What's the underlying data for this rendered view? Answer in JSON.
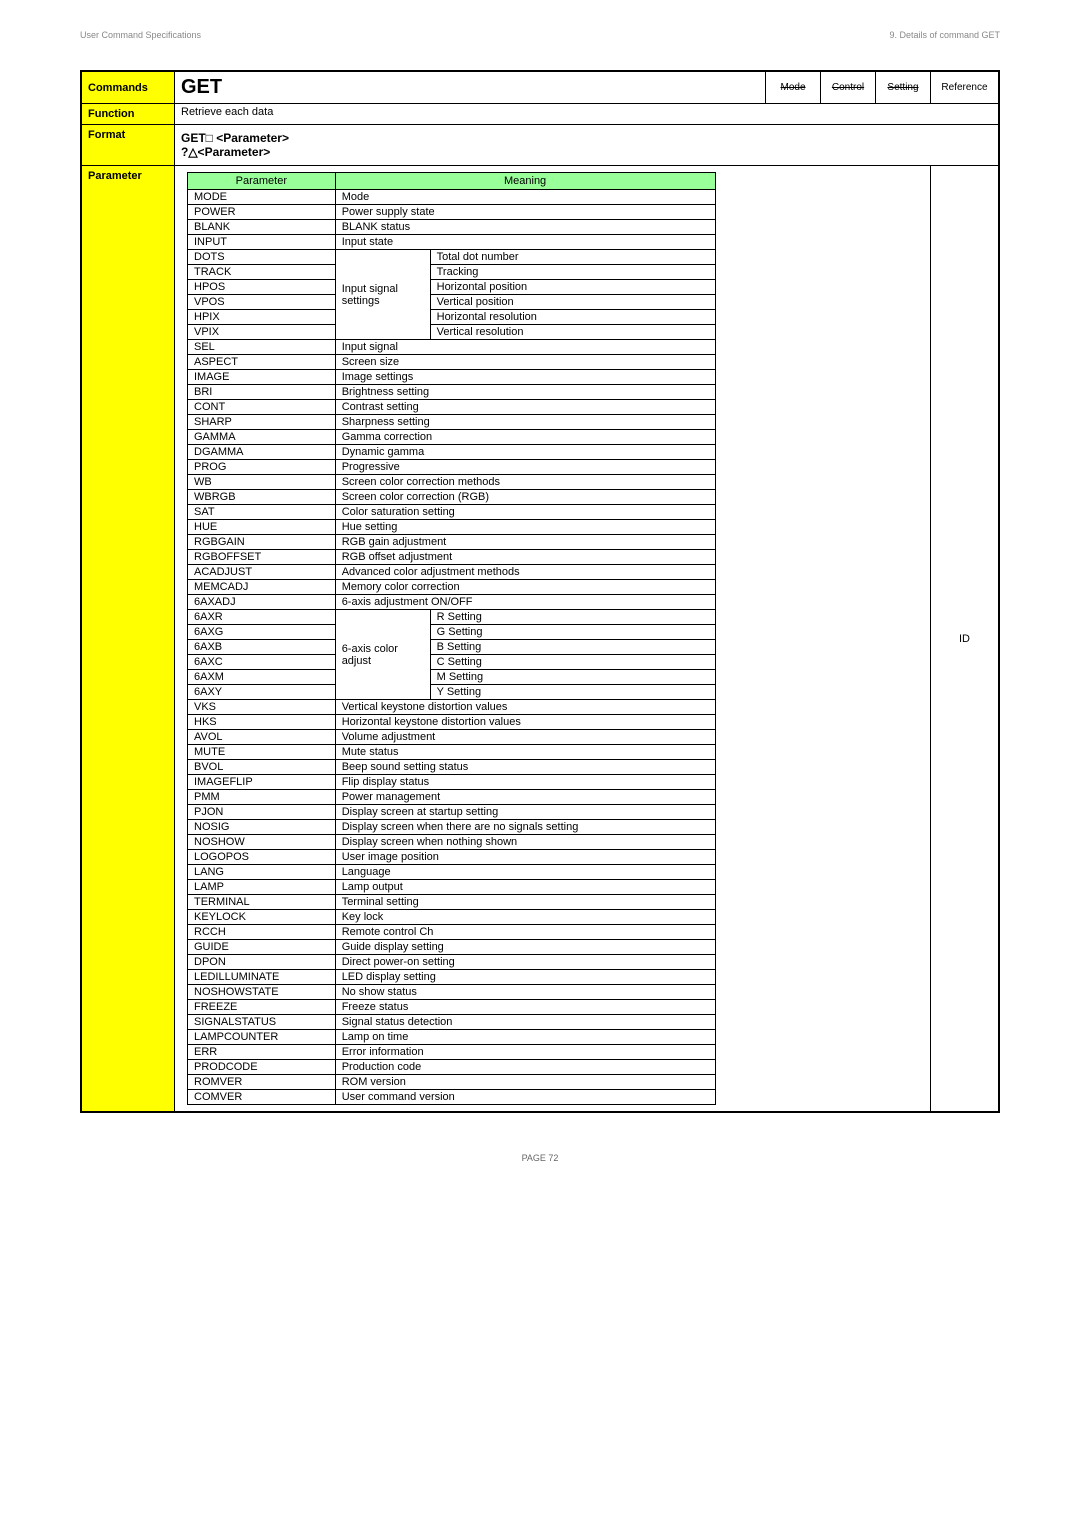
{
  "header": {
    "left": "User Command Specifications",
    "right": "9. Details of command GET"
  },
  "top": {
    "commands": "Commands",
    "get": "GET",
    "mode": "Mode",
    "control": "Control",
    "setting": "Setting",
    "reference": "Reference"
  },
  "function": {
    "label": "Function",
    "text": "Retrieve each data"
  },
  "format": {
    "label": "Format",
    "line1": "GET□ <Parameter>",
    "line2": "?△<Parameter>"
  },
  "parameter": {
    "label": "Parameter",
    "col1": "Parameter",
    "col2": "Meaning",
    "id": "ID"
  },
  "inputSignal": "Input signal settings",
  "sixAxis": "6-axis color adjust",
  "rows": [
    {
      "p": "MODE",
      "m": "Mode"
    },
    {
      "p": "POWER",
      "m": "Power supply state"
    },
    {
      "p": "BLANK",
      "m": "BLANK status"
    },
    {
      "p": "INPUT",
      "m": "Input state"
    },
    {
      "p": "DOTS",
      "m": "Total dot number",
      "g": "input"
    },
    {
      "p": "TRACK",
      "m": "Tracking",
      "g": "input"
    },
    {
      "p": "HPOS",
      "m": "Horizontal position",
      "g": "input"
    },
    {
      "p": "VPOS",
      "m": "Vertical position",
      "g": "input"
    },
    {
      "p": "HPIX",
      "m": "Horizontal resolution",
      "g": "input"
    },
    {
      "p": "VPIX",
      "m": "Vertical resolution",
      "g": "input"
    },
    {
      "p": "SEL",
      "m": "Input signal"
    },
    {
      "p": "ASPECT",
      "m": "Screen size"
    },
    {
      "p": "IMAGE",
      "m": "Image settings"
    },
    {
      "p": "BRI",
      "m": "Brightness setting"
    },
    {
      "p": "CONT",
      "m": "Contrast setting"
    },
    {
      "p": "SHARP",
      "m": "Sharpness setting"
    },
    {
      "p": "GAMMA",
      "m": "Gamma correction"
    },
    {
      "p": "DGAMMA",
      "m": "Dynamic gamma"
    },
    {
      "p": "PROG",
      "m": "Progressive"
    },
    {
      "p": "WB",
      "m": "Screen color correction methods"
    },
    {
      "p": "WBRGB",
      "m": "Screen color correction (RGB)"
    },
    {
      "p": "SAT",
      "m": "Color saturation setting"
    },
    {
      "p": "HUE",
      "m": "Hue setting"
    },
    {
      "p": "RGBGAIN",
      "m": "RGB gain adjustment"
    },
    {
      "p": "RGBOFFSET",
      "m": "RGB offset adjustment"
    },
    {
      "p": "ACADJUST",
      "m": "Advanced color adjustment methods"
    },
    {
      "p": "MEMCADJ",
      "m": "Memory color correction"
    },
    {
      "p": "6AXADJ",
      "m": "6-axis adjustment ON/OFF"
    },
    {
      "p": "6AXR",
      "m": "R Setting",
      "g": "6axis"
    },
    {
      "p": "6AXG",
      "m": "G Setting",
      "g": "6axis"
    },
    {
      "p": "6AXB",
      "m": "B Setting",
      "g": "6axis"
    },
    {
      "p": "6AXC",
      "m": "C Setting",
      "g": "6axis"
    },
    {
      "p": "6AXM",
      "m": "M Setting",
      "g": "6axis"
    },
    {
      "p": "6AXY",
      "m": "Y Setting",
      "g": "6axis"
    },
    {
      "p": "VKS",
      "m": "Vertical keystone distortion values"
    },
    {
      "p": "HKS",
      "m": "Horizontal keystone distortion values"
    },
    {
      "p": "AVOL",
      "m": "Volume adjustment"
    },
    {
      "p": "MUTE",
      "m": "Mute status"
    },
    {
      "p": "BVOL",
      "m": "Beep sound setting status"
    },
    {
      "p": "IMAGEFLIP",
      "m": "Flip display status"
    },
    {
      "p": "PMM",
      "m": "Power management"
    },
    {
      "p": "PJON",
      "m": "Display screen at startup setting"
    },
    {
      "p": "NOSIG",
      "m": "Display screen when there are no signals setting"
    },
    {
      "p": "NOSHOW",
      "m": "Display screen when nothing shown"
    },
    {
      "p": "LOGOPOS",
      "m": "User image position"
    },
    {
      "p": "LANG",
      "m": "Language"
    },
    {
      "p": "LAMP",
      "m": "Lamp output"
    },
    {
      "p": "TERMINAL",
      "m": "Terminal setting"
    },
    {
      "p": "KEYLOCK",
      "m": "Key lock"
    },
    {
      "p": "RCCH",
      "m": "Remote control Ch"
    },
    {
      "p": "GUIDE",
      "m": "Guide display setting"
    },
    {
      "p": "DPON",
      "m": "Direct power-on setting"
    },
    {
      "p": "LEDILLUMINATE",
      "m": "LED display setting"
    },
    {
      "p": "NOSHOWSTATE",
      "m": "No show status"
    },
    {
      "p": "FREEZE",
      "m": "Freeze status"
    },
    {
      "p": "SIGNALSTATUS",
      "m": "Signal status detection"
    },
    {
      "p": "LAMPCOUNTER",
      "m": "Lamp on time"
    },
    {
      "p": "ERR",
      "m": "Error information"
    },
    {
      "p": "PRODCODE",
      "m": "Production code"
    },
    {
      "p": "ROMVER",
      "m": "ROM version"
    },
    {
      "p": "COMVER",
      "m": "User command version"
    }
  ],
  "footer": "PAGE 72"
}
